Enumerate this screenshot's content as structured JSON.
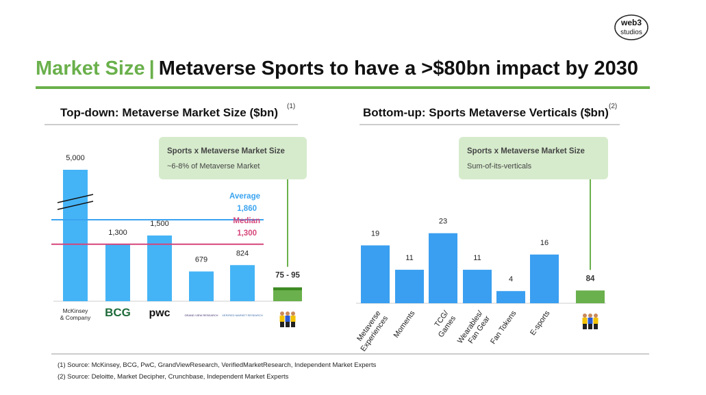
{
  "header": {
    "title_prefix": "Market Size",
    "separator": "|",
    "title": "Metaverse Sports to have a >$80bn impact by 2030",
    "logo": [
      "web3",
      "studios"
    ]
  },
  "chart_data": [
    {
      "type": "bar",
      "title": "Top-down: Metaverse Market Size ($bn)",
      "note_ref": "(1)",
      "categories": [
        [
          "McKinsey",
          "& Company"
        ],
        [
          "BCG"
        ],
        [
          "pwc"
        ],
        [
          "GRAND VIEW RESEARCH"
        ],
        [
          "VERIFIED MARKET RESEARCH"
        ]
      ],
      "values": [
        5000,
        1300,
        1500,
        679,
        824
      ],
      "value_labels": [
        "5,000",
        "1,300",
        "1,500",
        "679",
        "824"
      ],
      "color": "#45b4f6",
      "ylim": [
        0,
        3000
      ],
      "axis_break": true,
      "reference_lines": [
        {
          "name": "Average",
          "value": 1860,
          "value_label": "1,860",
          "color": "#3aa3f0"
        },
        {
          "name": "Median",
          "value": 1300,
          "value_label": "1,300",
          "color": "#d6457a"
        }
      ],
      "callout": {
        "title": "Sports x Metaverse Market Size",
        "text": "~6-8% of Metaverse Market"
      },
      "total": {
        "low": 75,
        "high": 95,
        "label": "75 - 95",
        "colors": [
          "#6ab04c",
          "#3d8a23"
        ]
      },
      "total_ylim": [
        0,
        900
      ]
    },
    {
      "type": "bar",
      "title": "Bottom-up: Sports Metaverse Verticals ($bn)",
      "note_ref": "(2)",
      "categories": [
        [
          "Metaverse",
          "Experiences"
        ],
        [
          "Moments"
        ],
        [
          "TCG/",
          "Games"
        ],
        [
          "Wearables/",
          "Fan Gear"
        ],
        [
          "Fan Tokens"
        ],
        [
          "E-sports"
        ]
      ],
      "values": [
        19,
        11,
        23,
        11,
        4,
        16
      ],
      "color": "#3a9ff0",
      "ylim": [
        0,
        40
      ],
      "callout": {
        "title": "Sports x Metaverse Market Size",
        "text": "Sum-of-its-verticals"
      },
      "total": {
        "value": 84,
        "color": "#6ab04c"
      },
      "total_ylim": [
        0,
        800
      ]
    }
  ],
  "footnotes": [
    "(1) Source: McKinsey, BCG, PwC, GrandViewResearch, VerifiedMarketResearch, Independent Market Experts",
    "(2) Source: Deloitte, Market Decipher, Crunchbase, Independent Market Experts"
  ]
}
